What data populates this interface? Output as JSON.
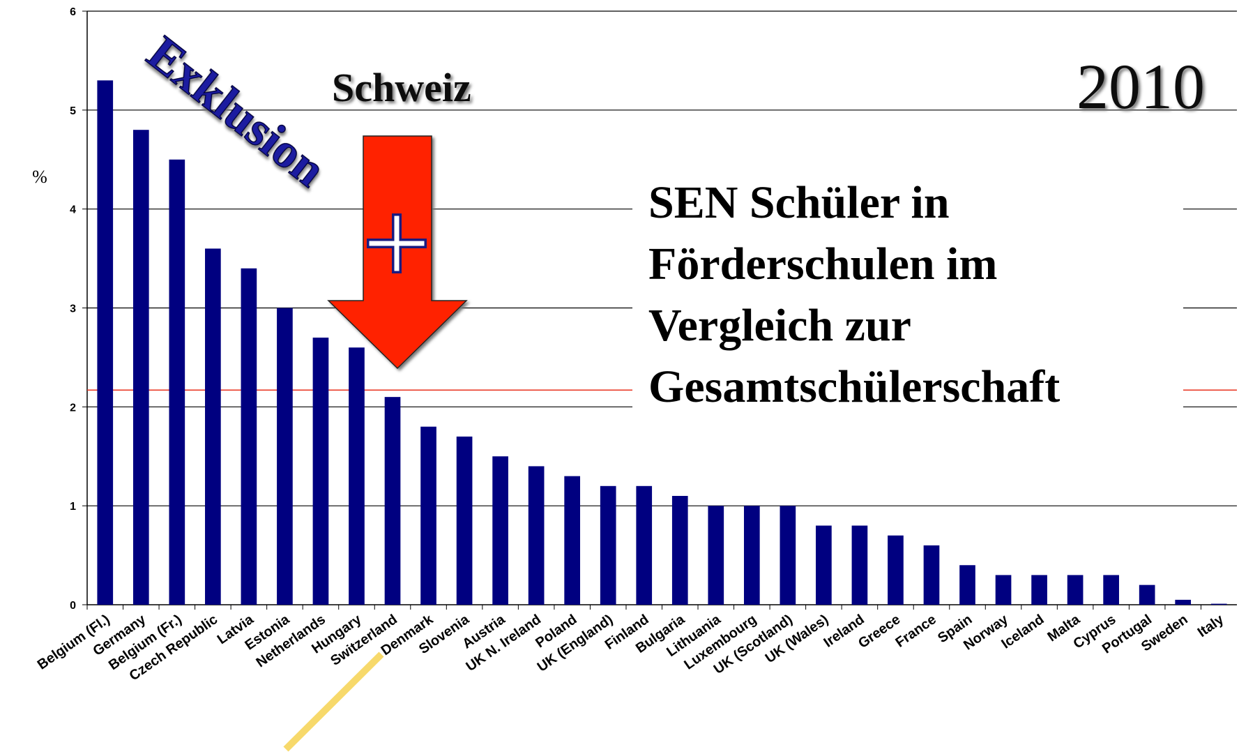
{
  "chart_data": {
    "type": "bar",
    "y_label": "%",
    "annotations": {
      "exclusion": "Exklusion",
      "country": "Schweiz",
      "year": "2010",
      "caption": [
        "SEN Schüler in",
        "Förderschulen im",
        "Vergleich zur",
        "Gesamtschülerschaft"
      ]
    },
    "categories": [
      "Belgium (Fl.)",
      "Germany",
      "Belgium (Fr.)",
      "Czech Republic",
      "Latvia",
      "Estonia",
      "Netherlands",
      "Hungary",
      "Switzerland",
      "Denmark",
      "Slovenia",
      "Austria",
      "UK N. Ireland",
      "Poland",
      "UK (England)",
      "Finland",
      "Bulgaria",
      "Lithuania",
      "Luxembourg",
      "UK (Scotland)",
      "UK  (Wales)",
      "Ireland",
      "Greece",
      "France",
      "Spain",
      "Norway",
      "Iceland",
      "Malta",
      "Cyprus",
      "Portugal",
      "Sweden",
      "Italy"
    ],
    "values": [
      5.3,
      4.8,
      4.5,
      3.6,
      3.4,
      3.0,
      2.7,
      2.6,
      2.1,
      1.8,
      1.7,
      1.5,
      1.4,
      1.3,
      1.2,
      1.2,
      1.1,
      1.0,
      1.0,
      1.0,
      0.8,
      0.8,
      0.7,
      0.6,
      0.4,
      0.3,
      0.3,
      0.3,
      0.3,
      0.2,
      0.05,
      0.01
    ],
    "color": "#000080",
    "ylim": [
      0,
      6
    ],
    "yticks": [
      0,
      1,
      2,
      3,
      4,
      5,
      6
    ],
    "grid": true,
    "reference_line": {
      "value": 2.17,
      "color": "#e8301e"
    }
  }
}
